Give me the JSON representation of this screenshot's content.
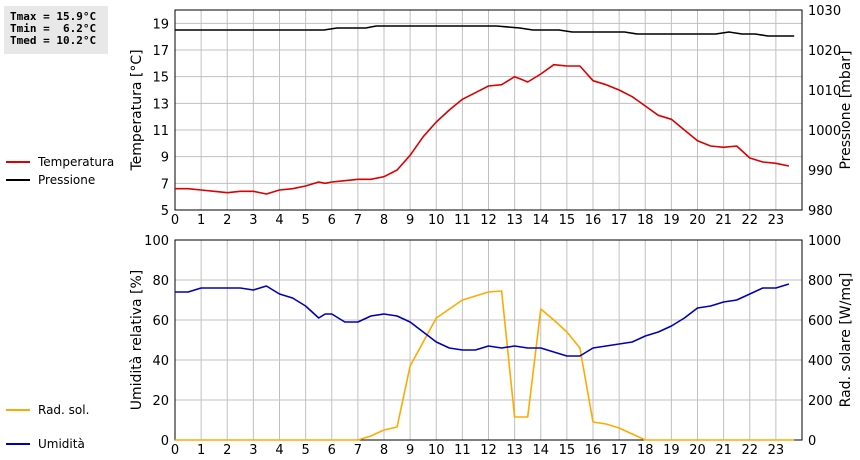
{
  "stats": {
    "tmax": "Tmax = 15.9°C",
    "tmin": "Tmin =  6.2°C",
    "tmed": "Tmed = 10.2°C"
  },
  "legend": {
    "temperature": "Temperatura",
    "pressure": "Pressione",
    "humidity": "Umidità",
    "radiation": "Rad. sol."
  },
  "colors": {
    "temperature": "#dd0000",
    "pressure": "#000000",
    "humidity": "#0000bb",
    "radiation": "#ffaa00",
    "grid": "#c0c0c0"
  },
  "chart_data": [
    {
      "type": "line",
      "grid": true,
      "xlabel": "",
      "x_ticks": [
        "0",
        "1",
        "2",
        "3",
        "4",
        "5",
        "6",
        "7",
        "8",
        "9",
        "10",
        "11",
        "12",
        "13",
        "14",
        "15",
        "16",
        "17",
        "18",
        "19",
        "20",
        "21",
        "22",
        "23"
      ],
      "xlim": [
        0,
        24
      ],
      "ylabel": "Temperatura [°C]",
      "ylim": [
        5,
        20
      ],
      "y_ticks": [
        "5",
        "7",
        "9",
        "11",
        "13",
        "15",
        "17",
        "19"
      ],
      "y2label": "Pressione [mbar]",
      "y2lim": [
        980,
        1030
      ],
      "y2_ticks": [
        "980",
        "990",
        "1000",
        "1010",
        "1020",
        "1030"
      ],
      "series": [
        {
          "name": "Temperatura",
          "axis": "left",
          "x": [
            0,
            0.5,
            1,
            1.5,
            2,
            2.5,
            3,
            3.5,
            4,
            4.5,
            5,
            5.5,
            5.75,
            6,
            6.5,
            7,
            7.5,
            8,
            8.5,
            9,
            9.5,
            10,
            10.5,
            11,
            11.5,
            12,
            12.5,
            13,
            13.25,
            13.5,
            14,
            14.5,
            15,
            15.5,
            16,
            16.5,
            17,
            17.5,
            18,
            18.5,
            19,
            19.5,
            20,
            20.5,
            21,
            21.5,
            22,
            22.5,
            23,
            23.5
          ],
          "y": [
            6.6,
            6.6,
            6.5,
            6.4,
            6.3,
            6.4,
            6.4,
            6.2,
            6.5,
            6.6,
            6.8,
            7.1,
            7.0,
            7.1,
            7.2,
            7.3,
            7.3,
            7.5,
            8.0,
            9.1,
            10.5,
            11.6,
            12.5,
            13.3,
            13.8,
            14.3,
            14.4,
            15.0,
            14.8,
            14.6,
            15.2,
            15.9,
            15.8,
            15.8,
            14.7,
            14.4,
            14.0,
            13.5,
            12.8,
            12.1,
            11.8,
            11.0,
            10.2,
            9.8,
            9.7,
            9.8,
            8.9,
            8.6,
            8.5,
            8.3
          ]
        },
        {
          "name": "Pressione",
          "axis": "right",
          "x": [
            0,
            5.7,
            6.2,
            7.3,
            7.7,
            12.3,
            13.2,
            13.7,
            14.7,
            15.2,
            17.2,
            17.7,
            20.7,
            21.2,
            21.7,
            22.2,
            22.7,
            23.7
          ],
          "y": [
            1025,
            1025,
            1025.5,
            1025.5,
            1026,
            1026,
            1025.5,
            1025,
            1025,
            1024.5,
            1024.5,
            1024,
            1024,
            1024.5,
            1024,
            1024,
            1023.5,
            1023.5
          ]
        }
      ]
    },
    {
      "type": "line",
      "grid": true,
      "xlabel": "",
      "x_ticks": [
        "0",
        "1",
        "2",
        "3",
        "4",
        "5",
        "6",
        "7",
        "8",
        "9",
        "10",
        "11",
        "12",
        "13",
        "14",
        "15",
        "16",
        "17",
        "18",
        "19",
        "20",
        "21",
        "22",
        "23"
      ],
      "xlim": [
        0,
        24
      ],
      "ylabel": "Umidità relativa [%]",
      "ylim": [
        0,
        100
      ],
      "y_ticks": [
        "0",
        "20",
        "40",
        "60",
        "80",
        "100"
      ],
      "y2label": "Rad. solare [W/mq]",
      "y2lim": [
        0,
        1000
      ],
      "y2_ticks": [
        "0",
        "200",
        "400",
        "600",
        "800",
        "1000"
      ],
      "series": [
        {
          "name": "Umidità",
          "axis": "left",
          "x": [
            0,
            0.5,
            1,
            1.5,
            2,
            2.5,
            3,
            3.25,
            3.5,
            4,
            4.5,
            5,
            5.5,
            5.75,
            6,
            6.25,
            6.5,
            7,
            7.5,
            8,
            8.5,
            9,
            9.5,
            10,
            10.5,
            11,
            11.5,
            12,
            12.5,
            13,
            13.5,
            14,
            14.5,
            15,
            15.5,
            16,
            16.5,
            17,
            17.5,
            18,
            18.5,
            19,
            19.5,
            20,
            20.5,
            21,
            21.5,
            22,
            22.5,
            23,
            23.5
          ],
          "y": [
            74,
            74,
            76,
            76,
            76,
            76,
            75,
            76,
            77,
            73,
            71,
            67,
            61,
            63,
            63,
            61,
            59,
            59,
            62,
            63,
            62,
            59,
            54,
            49,
            46,
            45,
            45,
            47,
            46,
            47,
            46,
            46,
            44,
            42,
            42,
            46,
            47,
            48,
            49,
            52,
            54,
            57,
            61,
            66,
            67,
            69,
            70,
            73,
            76,
            76,
            78
          ]
        },
        {
          "name": "Rad. sol.",
          "axis": "right",
          "x": [
            0,
            7,
            7.5,
            8,
            8.5,
            9,
            10,
            11,
            12,
            12.5,
            13,
            13.5,
            14,
            14.5,
            15,
            15.5,
            16,
            16.5,
            17,
            17.5,
            18,
            23.7
          ],
          "y": [
            0,
            0,
            20,
            50,
            65,
            370,
            610,
            700,
            740,
            745,
            115,
            115,
            655,
            600,
            540,
            460,
            90,
            80,
            60,
            30,
            0,
            0
          ]
        }
      ]
    }
  ]
}
